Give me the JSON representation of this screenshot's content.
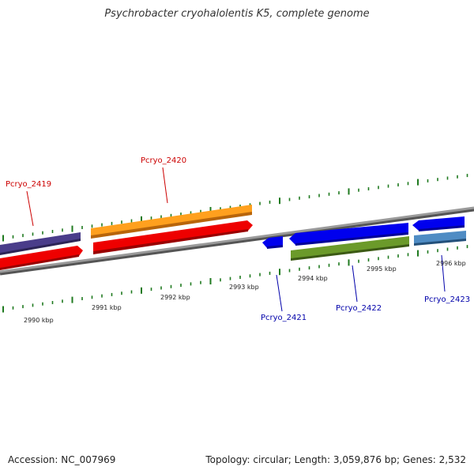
{
  "title": "Psychrobacter cryohalolentis K5, complete genome",
  "footer": {
    "accession": "Accession: NC_007969",
    "summary": "Topology: circular; Length: 3,059,876 bp; Genes: 2,532"
  },
  "colors": {
    "backbone": "#8a8a8a",
    "tick": "#1f7a1f",
    "forward_label": "#cc0000",
    "reverse_label": "#0000aa"
  },
  "scale_labels": [
    {
      "text": "2990 kbp",
      "kbp": 2990
    },
    {
      "text": "2991 kbp",
      "kbp": 2991
    },
    {
      "text": "2992 kbp",
      "kbp": 2992
    },
    {
      "text": "2993 kbp",
      "kbp": 2993
    },
    {
      "text": "2994 kbp",
      "kbp": 2994
    },
    {
      "text": "2995 kbp",
      "kbp": 2995
    },
    {
      "text": "2996 kbp",
      "kbp": 2996
    }
  ],
  "genes": [
    {
      "id": "Pcryo_2419",
      "strand": "forward",
      "color": "#ff0000",
      "gene_color": "#4a3d8a"
    },
    {
      "id": "Pcryo_2420",
      "strand": "forward",
      "color": "#ff0000",
      "gene_color": "#ff8c00"
    },
    {
      "id": "Pcryo_2421",
      "strand": "reverse",
      "color": "#0000ee"
    },
    {
      "id": "Pcryo_2422",
      "strand": "reverse",
      "color": "#0000ee",
      "gene_color": "#5a8a1e"
    },
    {
      "id": "Pcryo_2423",
      "strand": "reverse",
      "color": "#0000ee",
      "gene_color": "#4682b4"
    }
  ]
}
